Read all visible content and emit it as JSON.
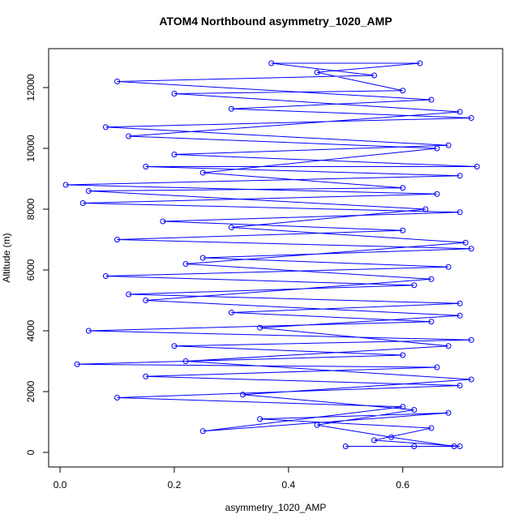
{
  "chart_data": {
    "type": "scatter",
    "lines": true,
    "title": "ATOM4 Northbound asymmetry_1020_AMP",
    "x_label": "asymmetry_1020_AMP",
    "y_label": "Altitude (m)",
    "color": "#0000ff",
    "x": [
      0.62,
      0.5,
      0.7,
      0.55,
      0.65,
      0.35,
      0.68,
      0.25,
      0.6,
      0.1,
      0.7,
      0.15,
      0.66,
      0.03,
      0.6,
      0.2,
      0.72,
      0.05,
      0.65,
      0.3,
      0.7,
      0.12,
      0.62,
      0.08,
      0.68,
      0.25,
      0.72,
      0.1,
      0.6,
      0.18,
      0.7,
      0.04,
      0.66,
      0.01,
      0.7,
      0.15,
      0.73,
      0.2,
      0.68,
      0.08,
      0.72,
      0.3,
      0.65,
      0.1,
      0.55,
      0.37,
      0.63,
      0.45,
      0.6,
      0.2,
      0.7,
      0.12,
      0.66,
      0.25,
      0.6,
      0.05,
      0.64,
      0.3,
      0.71,
      0.22,
      0.65,
      0.15,
      0.7,
      0.35,
      0.68,
      0.22,
      0.72,
      0.32,
      0.62,
      0.45,
      0.58,
      0.69
    ],
    "values": [
      200,
      200,
      200,
      400,
      800,
      1100,
      1300,
      700,
      1500,
      1800,
      2200,
      2500,
      2800,
      2900,
      3200,
      3500,
      3700,
      4000,
      4300,
      4600,
      4900,
      5200,
      5500,
      5800,
      6100,
      6400,
      6700,
      7000,
      7300,
      7600,
      7900,
      8200,
      8500,
      8800,
      9100,
      9400,
      9400,
      9800,
      10100,
      10700,
      11000,
      11300,
      11600,
      12200,
      12400,
      12800,
      12800,
      12500,
      11900,
      11800,
      11200,
      10400,
      10000,
      9200,
      8700,
      8600,
      8000,
      7400,
      6900,
      6200,
      5700,
      5000,
      4500,
      4100,
      3500,
      3000,
      2400,
      1900,
      1400,
      900,
      500,
      200
    ],
    "xlim": [
      -0.02,
      0.775
    ],
    "ylim": [
      -480,
      13280
    ],
    "xticks": [
      {
        "value": 0,
        "label": "0.0"
      },
      0.2,
      0.4,
      0.6
    ],
    "yticks": [
      0,
      2000,
      4000,
      6000,
      8000,
      10000,
      12000
    ]
  }
}
